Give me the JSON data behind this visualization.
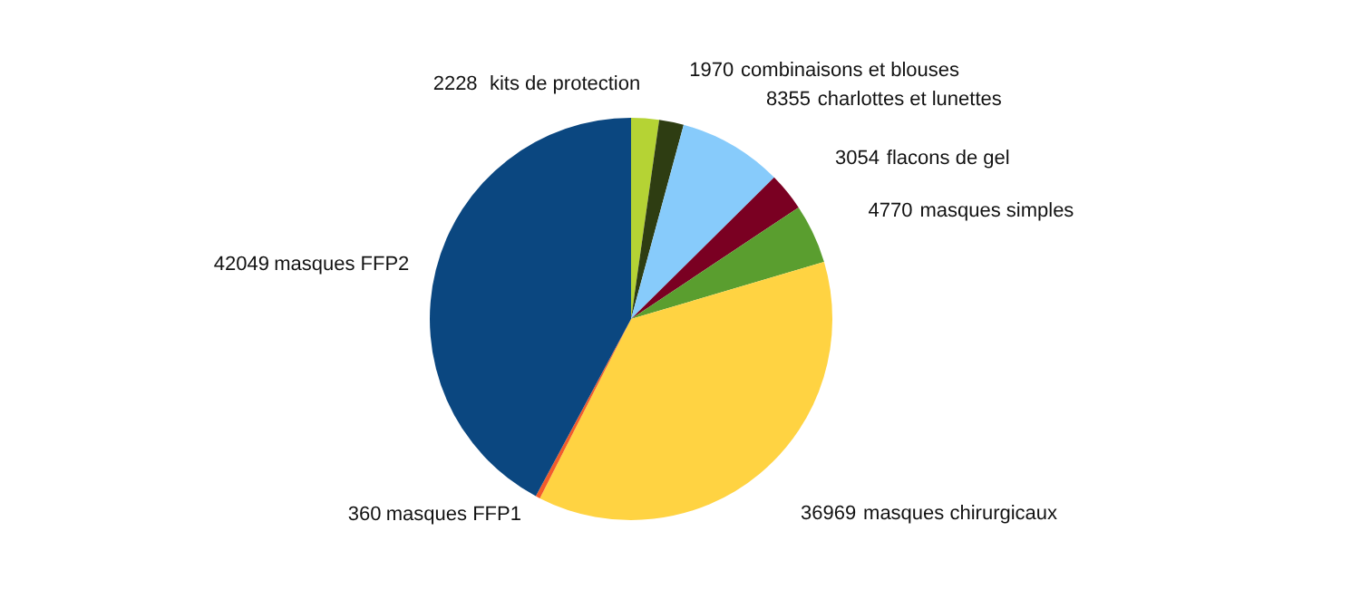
{
  "chart_data": {
    "type": "pie",
    "categories": [
      "kits de protection",
      "combinaisons et blouses",
      "charlottes et lunettes",
      "flacons de gel",
      "masques simples",
      "masques chirurgicaux",
      "masques FFP1",
      "masques FFP2"
    ],
    "values": [
      2228,
      1970,
      8355,
      3054,
      4770,
      36969,
      360,
      42049
    ],
    "colors": [
      "#b5d334",
      "#2e3d12",
      "#87cbfb",
      "#7a0022",
      "#5a9e2f",
      "#ffd342",
      "#f25c2a",
      "#0b4780"
    ],
    "data_labels": true
  }
}
